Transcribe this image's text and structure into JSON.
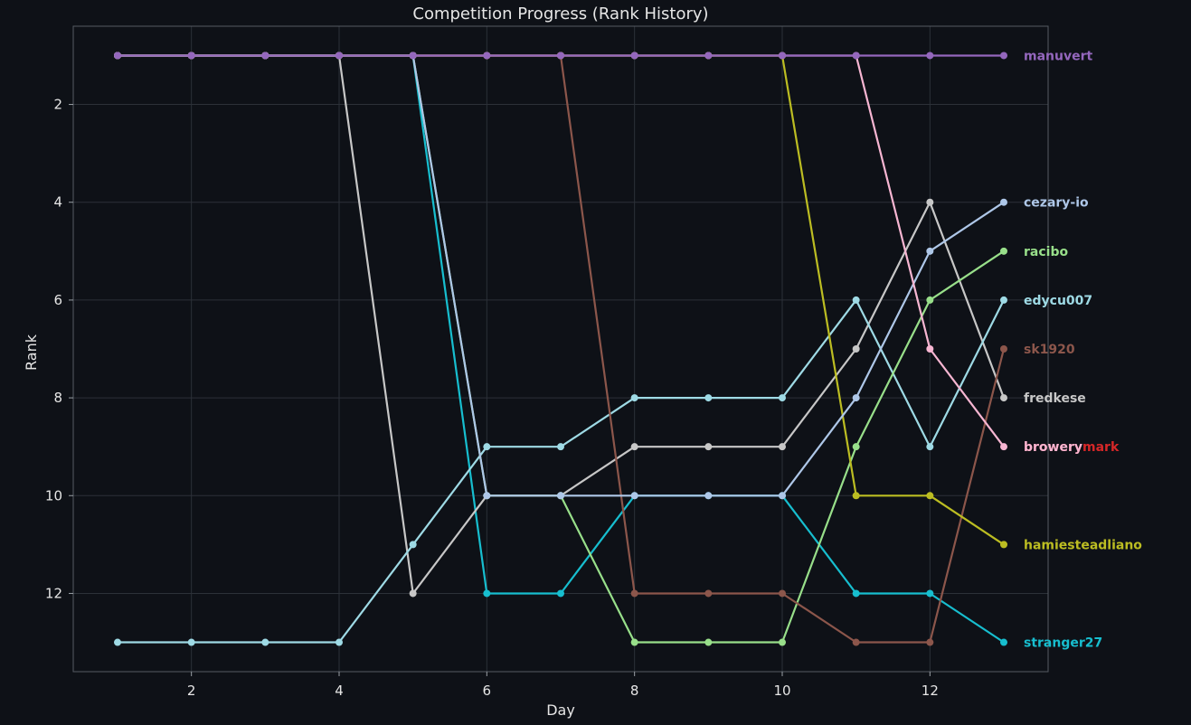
{
  "chart_data": {
    "type": "line",
    "title": "Competition Progress (Rank History)",
    "xlabel": "Day",
    "ylabel": "Rank",
    "x": [
      1,
      2,
      3,
      4,
      5,
      6,
      7,
      8,
      9,
      10,
      11,
      12,
      13
    ],
    "xlim": [
      0.4,
      13.6
    ],
    "ylim": [
      13.6,
      0.4
    ],
    "y_inverted": true,
    "xticks": [
      2,
      4,
      6,
      8,
      10,
      12
    ],
    "yticks": [
      2,
      4,
      6,
      8,
      10,
      12
    ],
    "grid": true,
    "legend": "end-of-line labels",
    "background_color": "#0e1117",
    "series": [
      {
        "name": "stranger27",
        "color": "#17becf",
        "values": [
          1,
          1,
          1,
          1,
          1,
          12,
          12,
          10,
          10,
          10,
          12,
          12,
          13
        ]
      },
      {
        "name": "fredkese",
        "color": "#c7c7c7",
        "values": [
          1,
          1,
          1,
          1,
          12,
          10,
          10,
          9,
          9,
          9,
          7,
          4,
          8
        ]
      },
      {
        "name": "edycu007",
        "color": "#9edae5",
        "values": [
          13,
          13,
          13,
          13,
          11,
          9,
          9,
          8,
          8,
          8,
          6,
          9,
          6
        ]
      },
      {
        "name": "racibo",
        "color": "#98df8a",
        "values": [
          1,
          1,
          1,
          1,
          1,
          10,
          10,
          13,
          13,
          13,
          9,
          6,
          5
        ]
      },
      {
        "name": "sk1920",
        "color": "#8c564b",
        "values": [
          1,
          1,
          1,
          1,
          1,
          1,
          1,
          12,
          12,
          12,
          13,
          13,
          7
        ]
      },
      {
        "name": "hamiesteadliano",
        "color": "#bcbd22",
        "values": [
          1,
          1,
          1,
          1,
          1,
          1,
          1,
          1,
          1,
          1,
          10,
          10,
          11
        ]
      },
      {
        "name": "cezary-io",
        "color": "#aec7e8",
        "values": [
          1,
          1,
          1,
          1,
          1,
          10,
          10,
          10,
          10,
          10,
          8,
          5,
          4
        ]
      },
      {
        "name": "browery",
        "color": "#f7b6d2",
        "values": [
          1,
          1,
          1,
          1,
          1,
          1,
          1,
          1,
          1,
          1,
          1,
          7,
          9
        ]
      },
      {
        "name": "manuvert",
        "color": "#9467bd",
        "values": [
          1,
          1,
          1,
          1,
          1,
          1,
          1,
          1,
          1,
          1,
          1,
          1,
          1
        ]
      }
    ],
    "end_labels": [
      {
        "text": "manuvert",
        "color": "#9467bd",
        "y": 1
      },
      {
        "text": "cezary-io",
        "color": "#aec7e8",
        "y": 4
      },
      {
        "text": "racibo",
        "color": "#98df8a",
        "y": 5
      },
      {
        "text": "edycu007",
        "color": "#9edae5",
        "y": 6
      },
      {
        "text": "sk1920",
        "color": "#8c564b",
        "y": 7
      },
      {
        "text": "fredkese",
        "color": "#c7c7c7",
        "y": 8
      },
      {
        "text": "browerymark",
        "color": "#d62728",
        "y": 9
      },
      {
        "text": "browery",
        "color": "#f7b6d2",
        "y": 9
      },
      {
        "text": "hamiesteadliano",
        "color": "#bcbd22",
        "y": 11
      },
      {
        "text": "stranger27",
        "color": "#17becf",
        "y": 13
      }
    ]
  }
}
